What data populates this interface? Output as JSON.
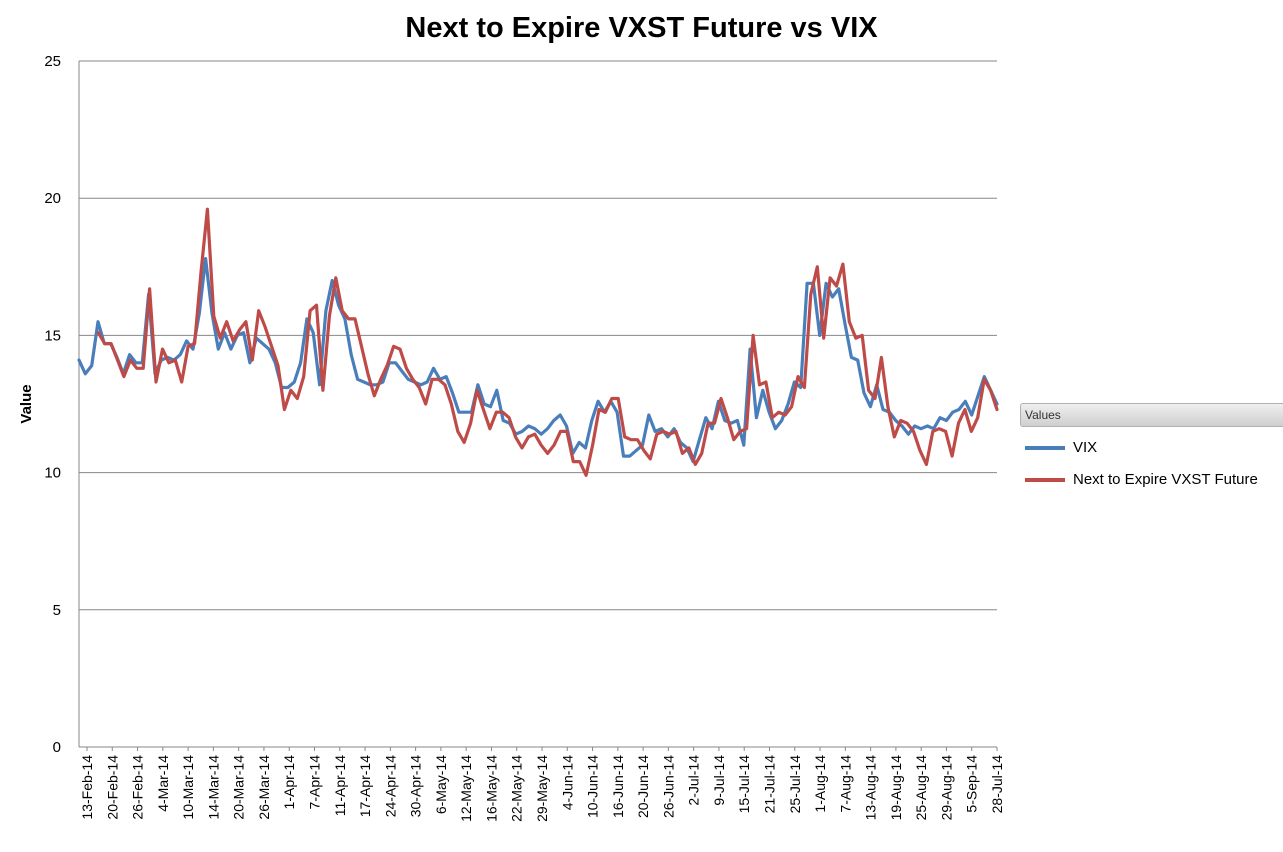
{
  "chart_data": {
    "type": "line",
    "title": "Next to Expire VXST Future vs VIX",
    "xlabel": "",
    "ylabel": "Value",
    "ylim": [
      0,
      25
    ],
    "yticks": [
      0,
      5,
      10,
      15,
      20,
      25
    ],
    "grid": "horizontal",
    "legend": {
      "title": "Values",
      "placement": "right"
    },
    "x_tick_labels": [
      "13-Feb-14",
      "20-Feb-14",
      "26-Feb-14",
      "4-Mar-14",
      "10-Mar-14",
      "14-Mar-14",
      "20-Mar-14",
      "26-Mar-14",
      "1-Apr-14",
      "7-Apr-14",
      "11-Apr-14",
      "17-Apr-14",
      "24-Apr-14",
      "30-Apr-14",
      "6-May-14",
      "12-May-14",
      "16-May-14",
      "22-May-14",
      "29-May-14",
      "4-Jun-14",
      "10-Jun-14",
      "16-Jun-14",
      "20-Jun-14",
      "26-Jun-14",
      "2-Jul-14",
      "9-Jul-14",
      "15-Jul-14",
      "21-Jul-14",
      "25-Jul-14",
      "1-Aug-14",
      "7-Aug-14",
      "13-Aug-14",
      "19-Aug-14",
      "25-Aug-14",
      "29-Aug-14",
      "5-Sep-14",
      "28-Jul-14"
    ],
    "series": [
      {
        "name": "VIX",
        "color": "#4a7ebb",
        "values": [
          14.1,
          13.6,
          13.9,
          15.5,
          14.7,
          14.7,
          14.2,
          13.6,
          14.3,
          14.0,
          14.0,
          16.5,
          13.6,
          14.1,
          14.2,
          14.1,
          14.3,
          14.8,
          14.5,
          15.8,
          17.8,
          15.8,
          14.5,
          15.1,
          14.5,
          15.0,
          15.1,
          14.0,
          14.9,
          14.7,
          14.5,
          14.0,
          13.1,
          13.1,
          13.3,
          14.0,
          15.6,
          15.1,
          13.2,
          15.9,
          17.0,
          16.1,
          15.6,
          14.3,
          13.4,
          13.3,
          13.2,
          13.2,
          13.3,
          14.0,
          14.0,
          13.7,
          13.4,
          13.3,
          13.2,
          13.3,
          13.8,
          13.4,
          13.5,
          12.9,
          12.2,
          12.2,
          12.2,
          13.2,
          12.5,
          12.4,
          13.0,
          11.9,
          11.8,
          11.4,
          11.5,
          11.7,
          11.6,
          11.4,
          11.6,
          11.9,
          12.1,
          11.7,
          10.7,
          11.1,
          10.9,
          11.9,
          12.6,
          12.2,
          12.6,
          12.2,
          10.6,
          10.6,
          10.8,
          11.0,
          12.1,
          11.5,
          11.6,
          11.3,
          11.6,
          11.1,
          10.9,
          10.4,
          11.2,
          12.0,
          11.6,
          12.6,
          11.9,
          11.8,
          11.9,
          11.0,
          14.5,
          12.0,
          13.0,
          12.2,
          11.6,
          11.9,
          12.5,
          13.3,
          13.1,
          16.9,
          16.9,
          15.0,
          16.9,
          16.4,
          16.7,
          15.4,
          14.2,
          14.1,
          12.9,
          12.4,
          13.2,
          12.3,
          12.2,
          11.9,
          11.7,
          11.4,
          11.7,
          11.6,
          11.7,
          11.6,
          12.0,
          11.9,
          12.2,
          12.3,
          12.6,
          12.1,
          12.8,
          13.5,
          13.0,
          12.5
        ]
      },
      {
        "name": "Next to Expire VXST Future",
        "color": "#be4b48",
        "values": [
          null,
          null,
          null,
          15.1,
          14.7,
          14.7,
          14.1,
          13.5,
          14.1,
          13.8,
          13.8,
          16.7,
          13.3,
          14.5,
          14.0,
          14.1,
          13.3,
          14.6,
          14.7,
          17.3,
          19.6,
          15.7,
          14.9,
          15.5,
          14.8,
          15.2,
          15.5,
          14.1,
          15.9,
          15.3,
          14.6,
          13.9,
          12.3,
          13.0,
          12.7,
          13.5,
          15.9,
          16.1,
          13.0,
          15.7,
          17.1,
          15.9,
          15.6,
          15.6,
          14.6,
          13.6,
          12.8,
          13.4,
          13.9,
          14.6,
          14.5,
          13.8,
          13.4,
          13.1,
          12.5,
          13.4,
          13.4,
          13.2,
          12.5,
          11.5,
          11.1,
          11.8,
          13.0,
          12.3,
          11.6,
          12.2,
          12.2,
          12.0,
          11.3,
          10.9,
          11.3,
          11.4,
          11.0,
          10.7,
          11.0,
          11.5,
          11.5,
          10.4,
          10.4,
          9.9,
          11.0,
          12.3,
          12.2,
          12.7,
          12.7,
          11.3,
          11.2,
          11.2,
          10.8,
          10.5,
          11.4,
          11.5,
          11.4,
          11.5,
          10.7,
          10.9,
          10.3,
          10.7,
          11.8,
          11.8,
          12.7,
          12.0,
          11.2,
          11.5,
          11.6,
          15.0,
          13.2,
          13.3,
          12.0,
          12.2,
          12.1,
          12.4,
          13.5,
          13.1,
          16.5,
          17.5,
          14.9,
          17.1,
          16.8,
          17.6,
          15.5,
          14.9,
          15.0,
          13.0,
          12.7,
          14.2,
          12.4,
          11.3,
          11.9,
          11.8,
          11.5,
          10.8,
          10.3,
          11.5,
          11.6,
          11.5,
          10.6,
          11.8,
          12.3,
          11.5,
          12.0,
          13.4,
          13.0,
          12.3
        ]
      }
    ]
  }
}
